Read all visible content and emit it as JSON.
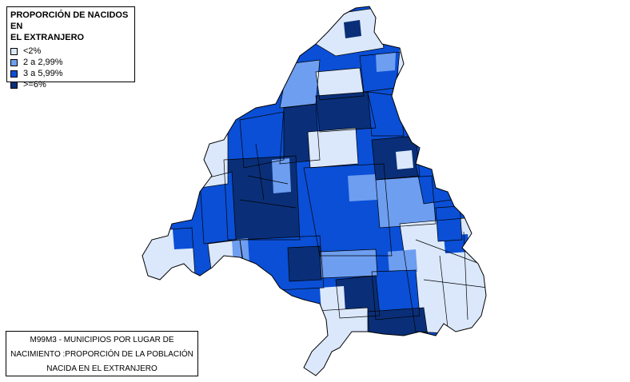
{
  "legend": {
    "title_line1": "PROPORCIÓN DE NACIDOS EN",
    "title_line2": "EL EXTRANJERO",
    "items": [
      {
        "label": "<2%",
        "color": "#dbe8fb"
      },
      {
        "label": "2 a 2,99%",
        "color": "#6e9ef0"
      },
      {
        "label": "3 a 5,99%",
        "color": "#0a4fd6"
      },
      {
        "label": ">=6%",
        "color": "#0a2f78"
      }
    ]
  },
  "caption": {
    "line1": "M99M3 - MUNICIPIOS POR LUGAR DE",
    "line2": "NACIMIENTO :PROPORCIÓN DE LA POBLACIÓN",
    "line3": "NACIDA EN EL EXTRANJERO"
  }
}
